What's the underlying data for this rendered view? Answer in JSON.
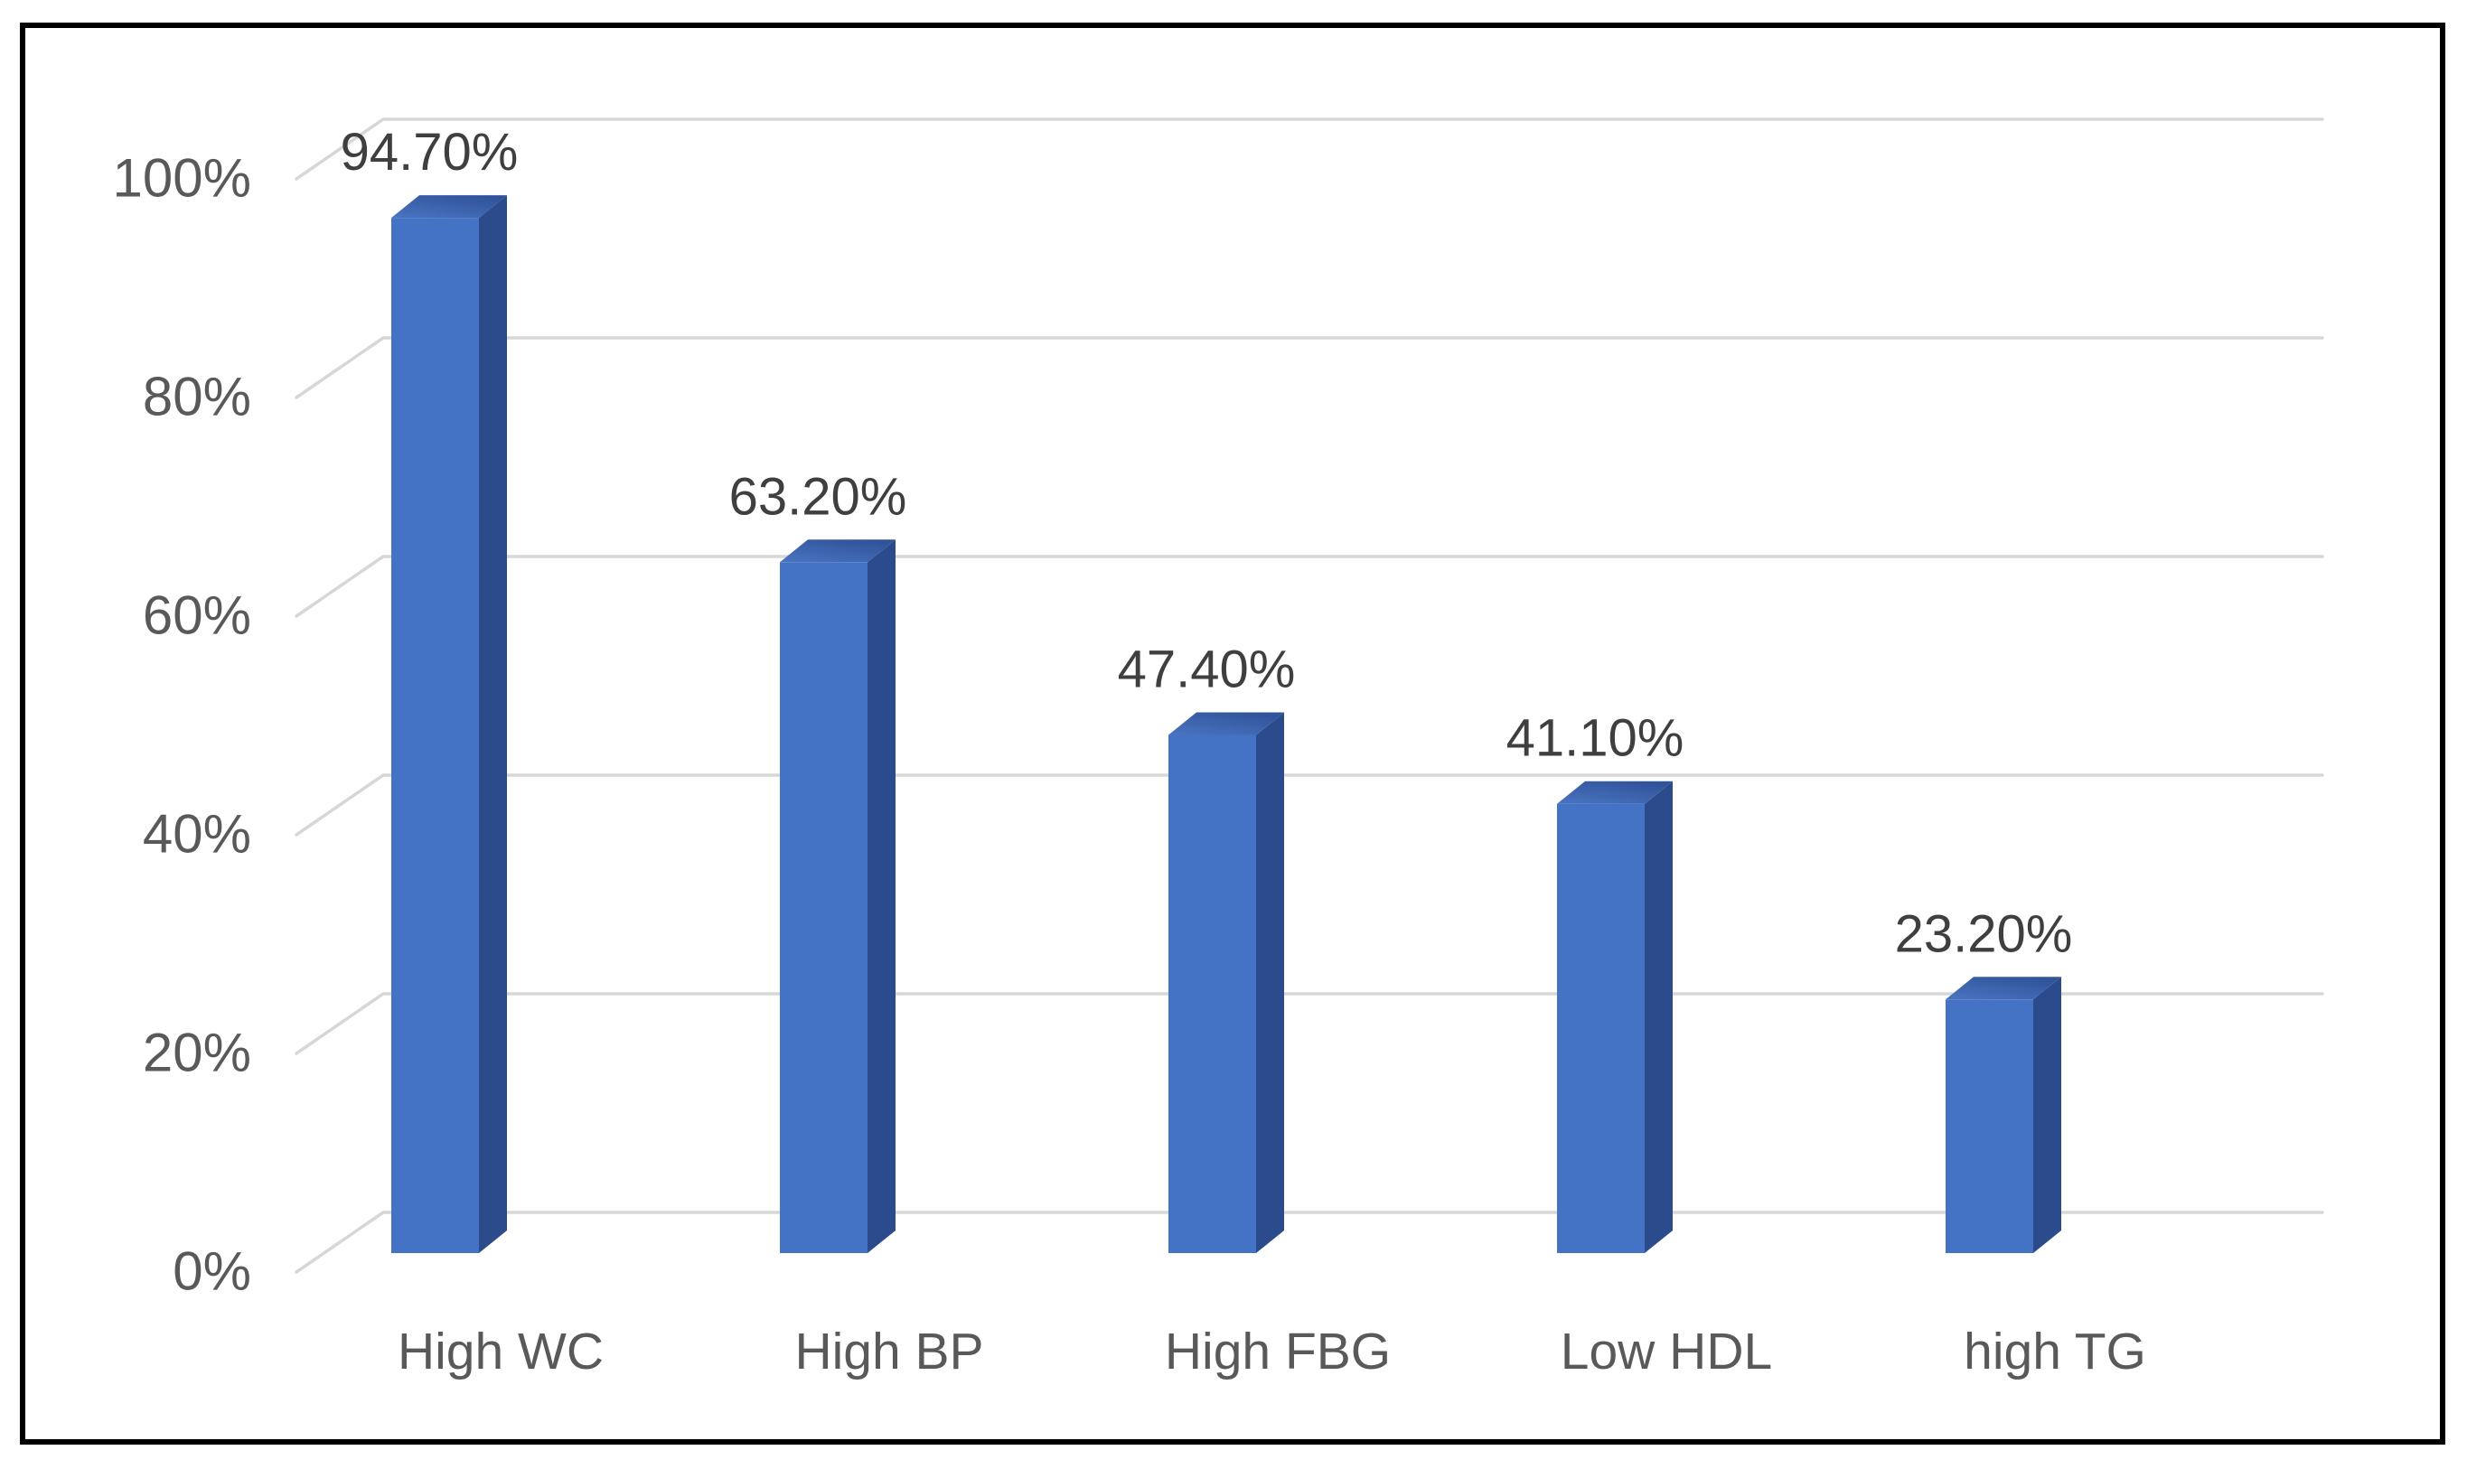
{
  "figure": {
    "background": "#ffffff",
    "border_color": "#000000"
  },
  "chart_data": {
    "type": "bar",
    "projection": "3d-column",
    "title": "",
    "xlabel": "",
    "ylabel": "",
    "categories": [
      "High WC",
      "High BP",
      "High FBG",
      "Low HDL",
      "high TG"
    ],
    "values": [
      94.7,
      63.2,
      47.4,
      41.1,
      23.2
    ],
    "data_labels": [
      "94.70%",
      "63.20%",
      "47.40%",
      "41.10%",
      "23.20%"
    ],
    "y_ticks": [
      "0%",
      "20%",
      "40%",
      "60%",
      "80%",
      "100%"
    ],
    "y_tick_values": [
      0,
      20,
      40,
      60,
      80,
      100
    ],
    "ylim": [
      0,
      100
    ],
    "grid": true,
    "legend_position": "none",
    "colors": {
      "bar_front": "#4472C4",
      "bar_side": "#2B4B8C",
      "bar_top_near": "#4A74C2",
      "bar_top_far": "#30549A",
      "gridline": "#D7D7D7",
      "axis_label": "#595959",
      "data_label": "#3F3F3F"
    }
  }
}
